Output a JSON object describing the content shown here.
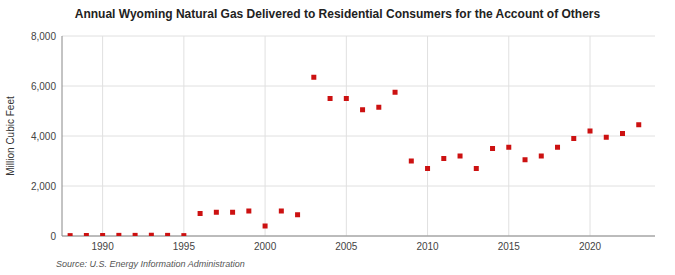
{
  "chart_data": {
    "type": "scatter",
    "title": "Annual Wyoming Natural Gas Delivered to Residential Consumers for the Account of Others",
    "y_label": "Million Cubic Feet",
    "source": "Source: U.S. Energy Information Administration",
    "x": [
      1988,
      1989,
      1990,
      1991,
      1992,
      1993,
      1994,
      1995,
      1996,
      1997,
      1998,
      1999,
      2000,
      2001,
      2002,
      2003,
      2004,
      2005,
      2006,
      2007,
      2008,
      2009,
      2010,
      2011,
      2012,
      2013,
      2014,
      2015,
      2016,
      2017,
      2018,
      2019,
      2020,
      2021,
      2022,
      2023
    ],
    "values": [
      15,
      20,
      20,
      25,
      25,
      30,
      25,
      15,
      900,
      950,
      950,
      1000,
      400,
      1000,
      850,
      6350,
      5500,
      5500,
      5050,
      5150,
      5750,
      3000,
      2700,
      3100,
      3200,
      2700,
      3500,
      3550,
      3050,
      3200,
      3550,
      3900,
      4200,
      3950,
      4100,
      4450
    ],
    "color": "#cc1111",
    "marker": "square",
    "xlim": [
      1987.5,
      2024
    ],
    "xticks": [
      1990,
      1995,
      2000,
      2005,
      2010,
      2015,
      2020
    ],
    "ylim": [
      0,
      8000
    ],
    "yticks": [
      0,
      {
        "value": 2000,
        "label": "2,000"
      },
      {
        "value": 4000,
        "label": "4,000"
      },
      {
        "value": 6000,
        "label": "6,000"
      },
      {
        "value": 8000,
        "label": "8,000"
      }
    ],
    "grid": true
  }
}
